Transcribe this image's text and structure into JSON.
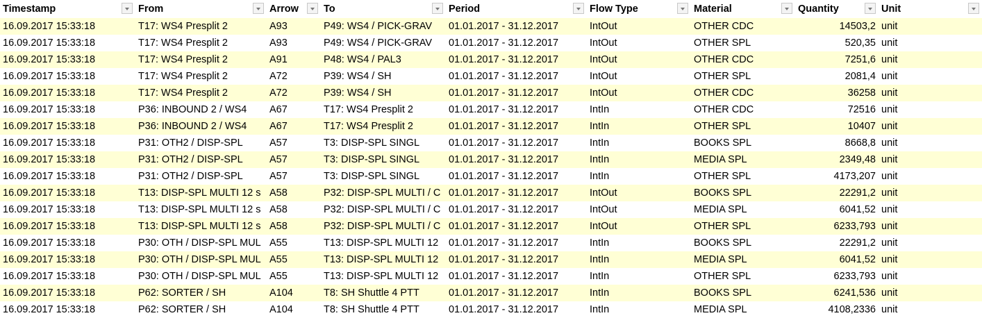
{
  "colors": {
    "band": "#ffffd5"
  },
  "columns": [
    "Timestamp",
    "From",
    "Arrow",
    "To",
    "Period",
    "Flow Type",
    "Material",
    "Quantity",
    "Unit"
  ],
  "rows": [
    [
      "16.09.2017 15:33:18",
      "T17: WS4 Presplit 2",
      "A93",
      "P49: WS4 / PICK-GRAV",
      "01.01.2017 - 31.12.2017",
      "IntOut",
      "OTHER CDC",
      "14503,2",
      "unit"
    ],
    [
      "16.09.2017 15:33:18",
      "T17: WS4 Presplit 2",
      "A93",
      "P49: WS4 / PICK-GRAV",
      "01.01.2017 - 31.12.2017",
      "IntOut",
      "OTHER SPL",
      "520,35",
      "unit"
    ],
    [
      "16.09.2017 15:33:18",
      "T17: WS4 Presplit 2",
      "A91",
      "P48: WS4 / PAL3",
      "01.01.2017 - 31.12.2017",
      "IntOut",
      "OTHER CDC",
      "7251,6",
      "unit"
    ],
    [
      "16.09.2017 15:33:18",
      "T17: WS4 Presplit 2",
      "A72",
      "P39: WS4 / SH",
      "01.01.2017 - 31.12.2017",
      "IntOut",
      "OTHER SPL",
      "2081,4",
      "unit"
    ],
    [
      "16.09.2017 15:33:18",
      "T17: WS4 Presplit 2",
      "A72",
      "P39: WS4 / SH",
      "01.01.2017 - 31.12.2017",
      "IntOut",
      "OTHER CDC",
      "36258",
      "unit"
    ],
    [
      "16.09.2017 15:33:18",
      "P36: INBOUND 2 / WS4",
      "A67",
      "T17: WS4 Presplit 2",
      "01.01.2017 - 31.12.2017",
      "IntIn",
      "OTHER CDC",
      "72516",
      "unit"
    ],
    [
      "16.09.2017 15:33:18",
      "P36: INBOUND 2 / WS4",
      "A67",
      "T17: WS4 Presplit 2",
      "01.01.2017 - 31.12.2017",
      "IntIn",
      "OTHER SPL",
      "10407",
      "unit"
    ],
    [
      "16.09.2017 15:33:18",
      "P31: OTH2 / DISP-SPL",
      "A57",
      "T3: DISP-SPL SINGL",
      "01.01.2017 - 31.12.2017",
      "IntIn",
      "BOOKS SPL",
      "8668,8",
      "unit"
    ],
    [
      "16.09.2017 15:33:18",
      "P31: OTH2 / DISP-SPL",
      "A57",
      "T3: DISP-SPL SINGL",
      "01.01.2017 - 31.12.2017",
      "IntIn",
      "MEDIA SPL",
      "2349,48",
      "unit"
    ],
    [
      "16.09.2017 15:33:18",
      "P31: OTH2 / DISP-SPL",
      "A57",
      "T3: DISP-SPL SINGL",
      "01.01.2017 - 31.12.2017",
      "IntIn",
      "OTHER SPL",
      "4173,207",
      "unit"
    ],
    [
      "16.09.2017 15:33:18",
      "T13: DISP-SPL MULTI 12 s",
      "A58",
      "P32: DISP-SPL MULTI / C",
      "01.01.2017 - 31.12.2017",
      "IntOut",
      "BOOKS SPL",
      "22291,2",
      "unit"
    ],
    [
      "16.09.2017 15:33:18",
      "T13: DISP-SPL MULTI 12 s",
      "A58",
      "P32: DISP-SPL MULTI / C",
      "01.01.2017 - 31.12.2017",
      "IntOut",
      "MEDIA SPL",
      "6041,52",
      "unit"
    ],
    [
      "16.09.2017 15:33:18",
      "T13: DISP-SPL MULTI 12 s",
      "A58",
      "P32: DISP-SPL MULTI / C",
      "01.01.2017 - 31.12.2017",
      "IntOut",
      "OTHER SPL",
      "6233,793",
      "unit"
    ],
    [
      "16.09.2017 15:33:18",
      "P30: OTH / DISP-SPL MUL",
      "A55",
      "T13: DISP-SPL MULTI 12",
      "01.01.2017 - 31.12.2017",
      "IntIn",
      "BOOKS SPL",
      "22291,2",
      "unit"
    ],
    [
      "16.09.2017 15:33:18",
      "P30: OTH / DISP-SPL MUL",
      "A55",
      "T13: DISP-SPL MULTI 12",
      "01.01.2017 - 31.12.2017",
      "IntIn",
      "MEDIA SPL",
      "6041,52",
      "unit"
    ],
    [
      "16.09.2017 15:33:18",
      "P30: OTH / DISP-SPL MUL",
      "A55",
      "T13: DISP-SPL MULTI 12",
      "01.01.2017 - 31.12.2017",
      "IntIn",
      "OTHER SPL",
      "6233,793",
      "unit"
    ],
    [
      "16.09.2017 15:33:18",
      "P62: SORTER / SH",
      "A104",
      "T8: SH Shuttle 4 PTT",
      "01.01.2017 - 31.12.2017",
      "IntIn",
      "BOOKS SPL",
      "6241,536",
      "unit"
    ],
    [
      "16.09.2017 15:33:18",
      "P62: SORTER / SH",
      "A104",
      "T8: SH Shuttle 4 PTT",
      "01.01.2017 - 31.12.2017",
      "IntIn",
      "MEDIA SPL",
      "4108,2336",
      "unit"
    ]
  ]
}
